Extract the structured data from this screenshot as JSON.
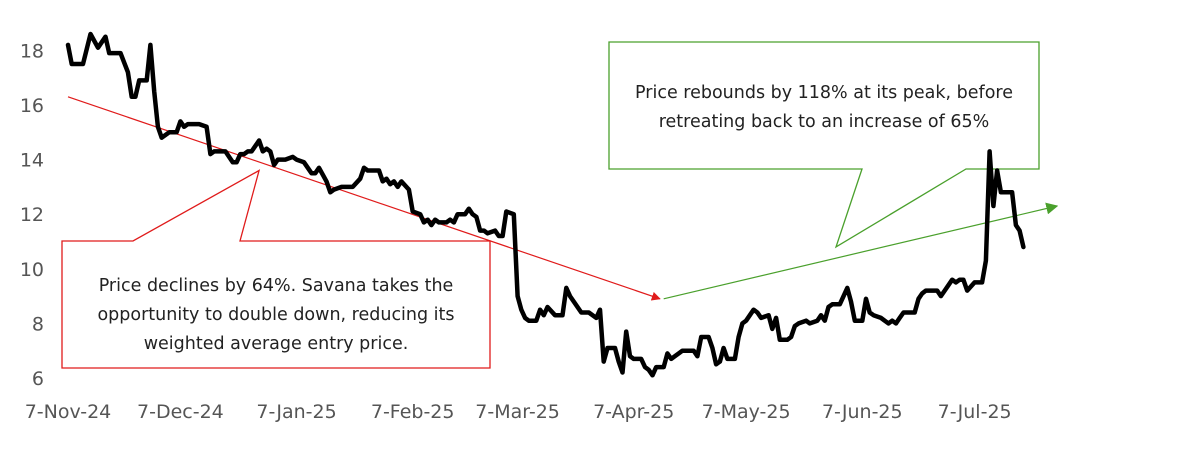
{
  "chart_data": {
    "type": "line",
    "title": "",
    "xlabel": "",
    "ylabel": "",
    "ylim": [
      6,
      18.6
    ],
    "yticks": [
      6,
      8,
      10,
      12,
      14,
      16,
      18
    ],
    "grid": false,
    "legend": "none",
    "x_tick_labels": [
      "7-Nov-24",
      "7-Dec-24",
      "7-Jan-25",
      "7-Feb-25",
      "7-Mar-25",
      "7-Apr-25",
      "7-May-25",
      "7-Jun-25",
      "7-Jul-25"
    ],
    "x_domain": [
      "2024-11-07",
      "2025-08-18"
    ],
    "colors": {
      "line": "#000000",
      "decline": "#e01b1b",
      "rebound": "#4aa02c",
      "axis_text": "#555555"
    },
    "series": [
      {
        "values": [
          [
            "2024-11-07",
            18.2
          ],
          [
            "2024-11-08",
            17.5
          ],
          [
            "2024-11-11",
            17.5
          ],
          [
            "2024-11-13",
            18.6
          ],
          [
            "2024-11-15",
            18.1
          ],
          [
            "2024-11-17",
            18.5
          ],
          [
            "2024-11-18",
            17.9
          ],
          [
            "2024-11-21",
            17.9
          ],
          [
            "2024-11-23",
            17.2
          ],
          [
            "2024-11-24",
            16.3
          ],
          [
            "2024-11-25",
            16.3
          ],
          [
            "2024-11-26",
            16.9
          ],
          [
            "2024-11-28",
            16.9
          ],
          [
            "2024-11-29",
            18.2
          ],
          [
            "2024-11-30",
            16.5
          ],
          [
            "2024-12-01",
            15.2
          ],
          [
            "2024-12-02",
            14.8
          ],
          [
            "2024-12-04",
            15.0
          ],
          [
            "2024-12-06",
            15.0
          ],
          [
            "2024-12-07",
            15.4
          ],
          [
            "2024-12-08",
            15.2
          ],
          [
            "2024-12-09",
            15.3
          ],
          [
            "2024-12-12",
            15.3
          ],
          [
            "2024-12-14",
            15.2
          ],
          [
            "2024-12-15",
            14.2
          ],
          [
            "2024-12-16",
            14.3
          ],
          [
            "2024-12-19",
            14.3
          ],
          [
            "2024-12-21",
            13.9
          ],
          [
            "2024-12-22",
            13.9
          ],
          [
            "2024-12-23",
            14.2
          ],
          [
            "2024-12-24",
            14.2
          ],
          [
            "2024-12-25",
            14.3
          ],
          [
            "2024-12-26",
            14.3
          ],
          [
            "2024-12-28",
            14.7
          ],
          [
            "2024-12-29",
            14.3
          ],
          [
            "2024-12-30",
            14.4
          ],
          [
            "2024-12-31",
            14.3
          ],
          [
            "2025-01-01",
            13.8
          ],
          [
            "2025-01-02",
            14.0
          ],
          [
            "2025-01-04",
            14.0
          ],
          [
            "2025-01-06",
            14.1
          ],
          [
            "2025-01-07",
            14.0
          ],
          [
            "2025-01-09",
            13.9
          ],
          [
            "2025-01-11",
            13.5
          ],
          [
            "2025-01-12",
            13.5
          ],
          [
            "2025-01-13",
            13.7
          ],
          [
            "2025-01-15",
            13.2
          ],
          [
            "2025-01-16",
            12.8
          ],
          [
            "2025-01-17",
            12.9
          ],
          [
            "2025-01-19",
            13.0
          ],
          [
            "2025-01-22",
            13.0
          ],
          [
            "2025-01-24",
            13.3
          ],
          [
            "2025-01-25",
            13.7
          ],
          [
            "2025-01-26",
            13.6
          ],
          [
            "2025-01-29",
            13.6
          ],
          [
            "2025-01-30",
            13.2
          ],
          [
            "2025-01-31",
            13.3
          ],
          [
            "2025-02-01",
            13.1
          ],
          [
            "2025-02-02",
            13.2
          ],
          [
            "2025-02-03",
            13.0
          ],
          [
            "2025-02-04",
            13.2
          ],
          [
            "2025-02-06",
            12.9
          ],
          [
            "2025-02-07",
            12.1
          ],
          [
            "2025-02-09",
            12.0
          ],
          [
            "2025-02-10",
            11.7
          ],
          [
            "2025-02-11",
            11.8
          ],
          [
            "2025-02-12",
            11.6
          ],
          [
            "2025-02-13",
            11.8
          ],
          [
            "2025-02-14",
            11.7
          ],
          [
            "2025-02-16",
            11.7
          ],
          [
            "2025-02-17",
            11.8
          ],
          [
            "2025-02-18",
            11.7
          ],
          [
            "2025-02-19",
            12.0
          ],
          [
            "2025-02-21",
            12.0
          ],
          [
            "2025-02-22",
            12.2
          ],
          [
            "2025-02-23",
            12.0
          ],
          [
            "2025-02-24",
            11.9
          ],
          [
            "2025-02-25",
            11.4
          ],
          [
            "2025-02-26",
            11.4
          ],
          [
            "2025-02-27",
            11.3
          ],
          [
            "2025-03-01",
            11.4
          ],
          [
            "2025-03-02",
            11.2
          ],
          [
            "2025-03-03",
            11.2
          ],
          [
            "2025-03-04",
            12.1
          ],
          [
            "2025-03-06",
            12.0
          ],
          [
            "2025-03-07",
            9.0
          ],
          [
            "2025-03-08",
            8.5
          ],
          [
            "2025-03-09",
            8.2
          ],
          [
            "2025-03-10",
            8.1
          ],
          [
            "2025-03-12",
            8.1
          ],
          [
            "2025-03-13",
            8.5
          ],
          [
            "2025-03-14",
            8.3
          ],
          [
            "2025-03-15",
            8.6
          ],
          [
            "2025-03-17",
            8.3
          ],
          [
            "2025-03-19",
            8.3
          ],
          [
            "2025-03-20",
            9.3
          ],
          [
            "2025-03-21",
            9.0
          ],
          [
            "2025-03-22",
            8.8
          ],
          [
            "2025-03-23",
            8.6
          ],
          [
            "2025-03-24",
            8.4
          ],
          [
            "2025-03-26",
            8.4
          ],
          [
            "2025-03-28",
            8.2
          ],
          [
            "2025-03-29",
            8.5
          ],
          [
            "2025-03-30",
            6.6
          ],
          [
            "2025-03-31",
            7.1
          ],
          [
            "2025-04-02",
            7.1
          ],
          [
            "2025-04-03",
            6.6
          ],
          [
            "2025-04-04",
            6.2
          ],
          [
            "2025-04-05",
            7.7
          ],
          [
            "2025-04-06",
            6.8
          ],
          [
            "2025-04-07",
            6.7
          ],
          [
            "2025-04-08",
            6.7
          ],
          [
            "2025-04-09",
            6.7
          ],
          [
            "2025-04-10",
            6.4
          ],
          [
            "2025-04-11",
            6.3
          ],
          [
            "2025-04-12",
            6.1
          ],
          [
            "2025-04-13",
            6.4
          ],
          [
            "2025-04-15",
            6.4
          ],
          [
            "2025-04-16",
            6.9
          ],
          [
            "2025-04-17",
            6.7
          ],
          [
            "2025-04-18",
            6.8
          ],
          [
            "2025-04-19",
            6.9
          ],
          [
            "2025-04-20",
            7.0
          ],
          [
            "2025-04-23",
            7.0
          ],
          [
            "2025-04-24",
            6.8
          ],
          [
            "2025-04-25",
            7.5
          ],
          [
            "2025-04-27",
            7.5
          ],
          [
            "2025-04-28",
            7.1
          ],
          [
            "2025-04-29",
            6.5
          ],
          [
            "2025-04-30",
            6.6
          ],
          [
            "2025-05-01",
            7.1
          ],
          [
            "2025-05-02",
            6.7
          ],
          [
            "2025-05-04",
            6.7
          ],
          [
            "2025-05-05",
            7.5
          ],
          [
            "2025-05-06",
            8.0
          ],
          [
            "2025-05-07",
            8.1
          ],
          [
            "2025-05-09",
            8.5
          ],
          [
            "2025-05-10",
            8.4
          ],
          [
            "2025-05-11",
            8.2
          ],
          [
            "2025-05-13",
            8.3
          ],
          [
            "2025-05-14",
            7.8
          ],
          [
            "2025-05-15",
            8.2
          ],
          [
            "2025-05-16",
            7.4
          ],
          [
            "2025-05-18",
            7.4
          ],
          [
            "2025-05-19",
            7.5
          ],
          [
            "2025-05-20",
            7.9
          ],
          [
            "2025-05-21",
            8.0
          ],
          [
            "2025-05-23",
            8.1
          ],
          [
            "2025-05-24",
            8.0
          ],
          [
            "2025-05-26",
            8.1
          ],
          [
            "2025-05-27",
            8.3
          ],
          [
            "2025-05-28",
            8.1
          ],
          [
            "2025-05-29",
            8.6
          ],
          [
            "2025-05-30",
            8.7
          ],
          [
            "2025-06-01",
            8.7
          ],
          [
            "2025-06-03",
            9.3
          ],
          [
            "2025-06-04",
            8.8
          ],
          [
            "2025-06-05",
            8.1
          ],
          [
            "2025-06-07",
            8.1
          ],
          [
            "2025-06-08",
            8.9
          ],
          [
            "2025-06-09",
            8.4
          ],
          [
            "2025-06-10",
            8.3
          ],
          [
            "2025-06-12",
            8.2
          ],
          [
            "2025-06-13",
            8.1
          ],
          [
            "2025-06-14",
            8.0
          ],
          [
            "2025-06-15",
            8.1
          ],
          [
            "2025-06-16",
            8.0
          ],
          [
            "2025-06-17",
            8.2
          ],
          [
            "2025-06-18",
            8.4
          ],
          [
            "2025-06-21",
            8.4
          ],
          [
            "2025-06-22",
            8.9
          ],
          [
            "2025-06-23",
            9.1
          ],
          [
            "2025-06-24",
            9.2
          ],
          [
            "2025-06-27",
            9.2
          ],
          [
            "2025-06-28",
            9.0
          ],
          [
            "2025-06-29",
            9.2
          ],
          [
            "2025-07-01",
            9.6
          ],
          [
            "2025-07-02",
            9.5
          ],
          [
            "2025-07-03",
            9.6
          ],
          [
            "2025-07-04",
            9.6
          ],
          [
            "2025-07-05",
            9.2
          ],
          [
            "2025-07-07",
            9.5
          ],
          [
            "2025-07-09",
            9.5
          ],
          [
            "2025-07-10",
            10.3
          ],
          [
            "2025-07-11",
            14.3
          ],
          [
            "2025-07-12",
            12.3
          ],
          [
            "2025-07-13",
            13.6
          ],
          [
            "2025-07-14",
            12.8
          ],
          [
            "2025-07-15",
            12.8
          ],
          [
            "2025-07-17",
            12.8
          ],
          [
            "2025-07-18",
            11.6
          ],
          [
            "2025-07-19",
            11.4
          ],
          [
            "2025-07-20",
            10.8
          ]
        ]
      }
    ],
    "trendlines": [
      {
        "label": "decline",
        "from": [
          "2024-11-07",
          16.3
        ],
        "to": [
          "2025-04-14",
          8.9
        ]
      },
      {
        "label": "rebound",
        "from": [
          "2025-04-15",
          8.9
        ],
        "to": [
          "2025-07-29",
          12.3
        ]
      }
    ],
    "annotations": [
      {
        "key": "decline",
        "lines": [
          "Price declines by 64%. Savana takes the",
          "opportunity to double down, reducing its",
          "weighted average entry price."
        ],
        "border_color": "#e01b1b",
        "position": "lower-left",
        "pointer_to": [
          "2024-12-28",
          13.6
        ]
      },
      {
        "key": "rebound",
        "lines": [
          "Price rebounds by 118% at its peak, before",
          "retreating back to an increase of 65%"
        ],
        "border_color": "#4aa02c",
        "position": "upper-right",
        "pointer_to": [
          "2025-05-31",
          10.8
        ]
      }
    ]
  }
}
